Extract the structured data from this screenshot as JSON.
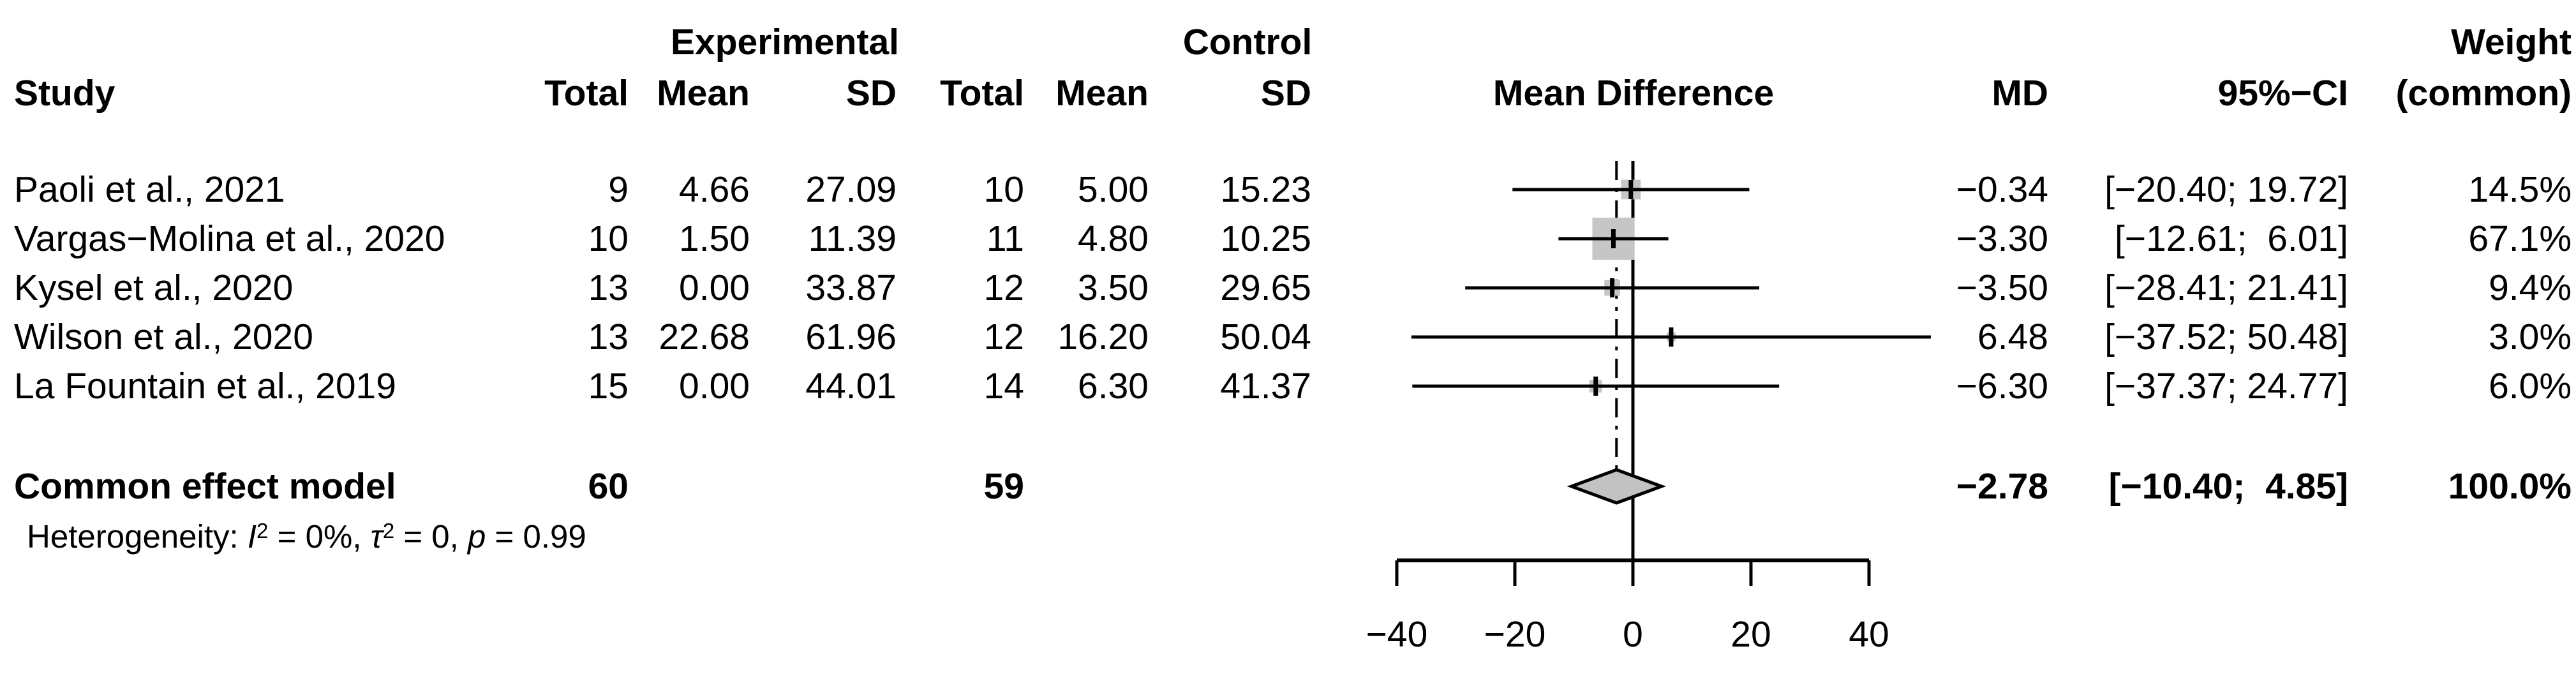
{
  "header": {
    "group_experimental": "Experimental",
    "group_control": "Control",
    "weight_line1": "Weight",
    "study": "Study",
    "total_exp": "Total",
    "mean_exp": "Mean",
    "sd_exp": "SD",
    "total_ctrl": "Total",
    "mean_ctrl": "Mean",
    "sd_ctrl": "SD",
    "mean_difference": "Mean Difference",
    "md": "MD",
    "ci": "95%−CI",
    "weight_line2": "(common)"
  },
  "table": {
    "rows": [
      {
        "study": "Paoli et al., 2021",
        "total_e": "9",
        "mean_e": "4.66",
        "sd_e": "27.09",
        "total_c": "10",
        "mean_c": "5.00",
        "sd_c": "15.23",
        "md": "−0.34",
        "ci": "[−20.40; 19.72]",
        "weight": "14.5%"
      },
      {
        "study": "Vargas−Molina et al., 2020",
        "total_e": "10",
        "mean_e": "1.50",
        "sd_e": "11.39",
        "total_c": "11",
        "mean_c": "4.80",
        "sd_c": "10.25",
        "md": "−3.30",
        "ci": "[−12.61;  6.01]",
        "weight": "67.1%"
      },
      {
        "study": "Kysel et al., 2020",
        "total_e": "13",
        "mean_e": "0.00",
        "sd_e": "33.87",
        "total_c": "12",
        "mean_c": "3.50",
        "sd_c": "29.65",
        "md": "−3.50",
        "ci": "[−28.41; 21.41]",
        "weight": "9.4%"
      },
      {
        "study": "Wilson et al., 2020",
        "total_e": "13",
        "mean_e": "22.68",
        "sd_e": "61.96",
        "total_c": "12",
        "mean_c": "16.20",
        "sd_c": "50.04",
        "md": "6.48",
        "ci": "[−37.52; 50.48]",
        "weight": "3.0%"
      },
      {
        "study": "La Fountain et al., 2019",
        "total_e": "15",
        "mean_e": "0.00",
        "sd_e": "44.01",
        "total_c": "14",
        "mean_c": "6.30",
        "sd_c": "41.37",
        "md": "−6.30",
        "ci": "[−37.37; 24.77]",
        "weight": "6.0%"
      }
    ],
    "summary": {
      "study": "Common effect model",
      "total_e": "60",
      "total_c": "59",
      "md": "−2.78",
      "ci": "[−10.40;  4.85]",
      "weight": "100.0%"
    },
    "heterogeneity": {
      "prefix": "Heterogeneity: ",
      "i_sym": "I",
      "i_sup": "2",
      "seg1": " = 0%, ",
      "tau_sym": "τ",
      "tau_sup": "2",
      "seg2": " = 0, ",
      "p_sym": "p",
      "seg3": " = 0.99"
    }
  },
  "chart_data": {
    "type": "forest",
    "title": "Mean Difference",
    "effect_measure": "MD",
    "x_axis": {
      "min": -40,
      "max": 40,
      "ticks": [
        -40,
        -20,
        0,
        20,
        40
      ],
      "tick_labels": [
        "−40",
        "−20",
        "0",
        "20",
        "40"
      ]
    },
    "zero_line": 0,
    "common_effect_line": -2.78,
    "studies": [
      {
        "name": "Paoli et al., 2021",
        "md": -0.34,
        "ci_low": -20.4,
        "ci_high": 19.72,
        "weight_pct": 14.5
      },
      {
        "name": "Vargas-Molina et al., 2020",
        "md": -3.3,
        "ci_low": -12.61,
        "ci_high": 6.01,
        "weight_pct": 67.1
      },
      {
        "name": "Kysel et al., 2020",
        "md": -3.5,
        "ci_low": -28.41,
        "ci_high": 21.41,
        "weight_pct": 9.4
      },
      {
        "name": "Wilson et al., 2020",
        "md": 6.48,
        "ci_low": -37.52,
        "ci_high": 50.48,
        "weight_pct": 3.0
      },
      {
        "name": "La Fountain et al., 2019",
        "md": -6.3,
        "ci_low": -37.37,
        "ci_high": 24.77,
        "weight_pct": 6.0
      }
    ],
    "summary": {
      "name": "Common effect model",
      "md": -2.78,
      "ci_low": -10.4,
      "ci_high": 4.85,
      "weight_pct": 100.0
    },
    "heterogeneity": {
      "I2": "0%",
      "tau2": "0",
      "p": "0.99"
    },
    "colors": {
      "square": "#c6c6c6",
      "diamond_fill": "#c2c2c2",
      "line": "#000000"
    }
  }
}
